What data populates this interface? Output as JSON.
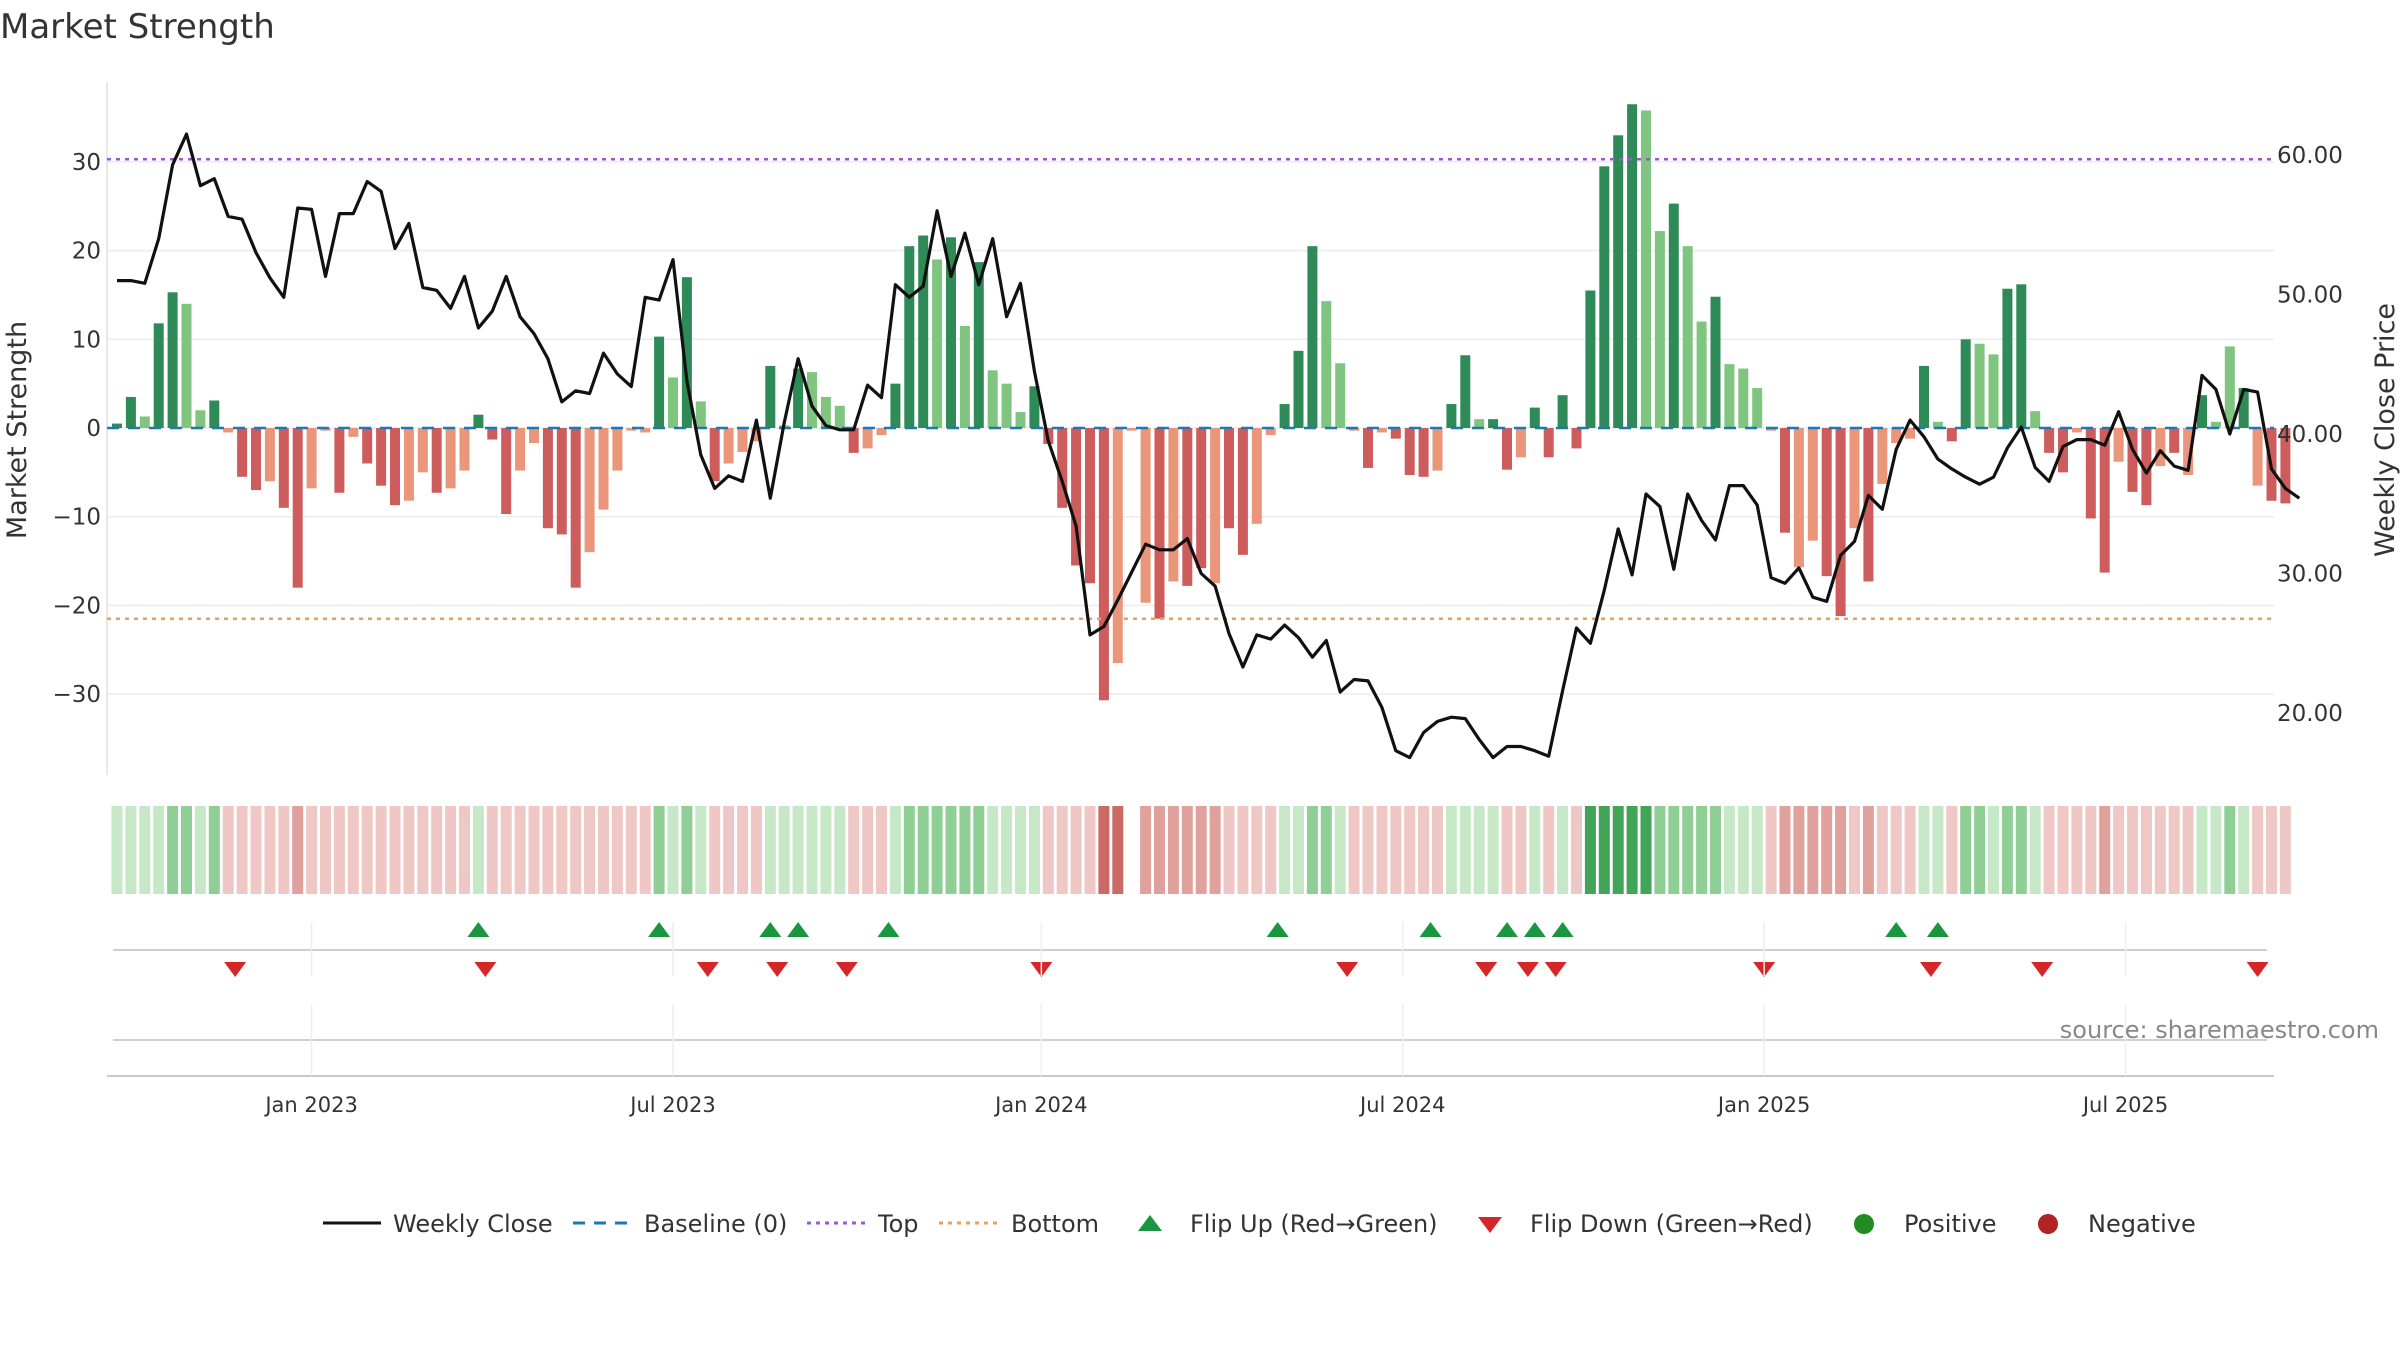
{
  "colors": {
    "dark_green": "#2e8b57",
    "light_green": "#7fc47f",
    "dark_red": "#cd5c5c",
    "light_red": "#e9967a",
    "close_line": "#111111",
    "baseline": "#1f77b4",
    "top": "#9b59d0",
    "bottom": "#e8a15a",
    "flip_up": "#1a9641",
    "flip_down": "#d62728",
    "positive": "#228b22",
    "negative": "#b22222"
  },
  "chart_data": {
    "type": "bar",
    "title": "Market Strength",
    "ylabel": "Market Strength",
    "y2label": "Weekly Close Price",
    "ylim": [
      -39,
      39
    ],
    "y2lim": [
      15.0,
      65.0
    ],
    "y_ticks": [
      30,
      20,
      10,
      0,
      -10,
      -20,
      -30
    ],
    "y_tick_labels": [
      "30",
      "20",
      "10",
      "0",
      "−10",
      "−20",
      "−30"
    ],
    "y2_ticks": [
      60,
      50,
      40,
      30,
      20
    ],
    "y2_tick_labels": [
      "60.00",
      "50.00",
      "40.00",
      "30.00",
      "20.00"
    ],
    "x_tick_labels": [
      "Jan 2023",
      "Jul 2023",
      "Jan 2024",
      "Jul 2024",
      "Jan 2025",
      "Jul 2025"
    ],
    "x_tick_weeks": [
      14,
      40,
      66.5,
      92.5,
      118.5,
      144.5
    ],
    "top_line": 30.3,
    "bottom_line": -21.5,
    "strength": [
      0.5,
      3.5,
      1.3,
      11.8,
      15.3,
      14,
      2,
      3.1,
      -0.5,
      -5.5,
      -7,
      -6,
      -9,
      -18,
      -6.8,
      -0.3,
      -7.3,
      -1,
      -4,
      -6.5,
      -8.7,
      -8.2,
      -5,
      -7.3,
      -6.8,
      -4.8,
      1.5,
      -1.3,
      -9.7,
      -4.8,
      -1.7,
      -11.3,
      -12,
      -18,
      -14,
      -9.2,
      -4.8,
      -0.3,
      -0.5,
      10.3,
      5.7,
      17,
      3,
      -6,
      -4,
      -2.7,
      -1.5,
      7,
      0.3,
      6.7,
      6.3,
      3.5,
      2.5,
      -2.8,
      -2.3,
      -0.8,
      5,
      20.5,
      21.7,
      19,
      21.5,
      11.5,
      18.7,
      6.5,
      5,
      1.8,
      4.7,
      -1.8,
      -9,
      -15.5,
      -17.5,
      -30.7,
      -26.5,
      -0.3,
      -19.7,
      -21.5,
      -17.3,
      -17.8,
      -15.8,
      -17.5,
      -11.3,
      -14.3,
      -10.8,
      -0.8,
      2.7,
      8.7,
      20.5,
      14.3,
      7.3,
      -0.3,
      -4.5,
      -0.5,
      -1.2,
      -5.3,
      -5.5,
      -4.8,
      2.7,
      8.2,
      1,
      1,
      -4.7,
      -3.3,
      2.3,
      -3.3,
      3.7,
      -2.3,
      15.5,
      29.5,
      33,
      36.5,
      35.8,
      22.2,
      25.3,
      20.5,
      12,
      14.8,
      7.2,
      6.7,
      4.5,
      -0.3,
      -11.8,
      -15.7,
      -12.7,
      -16.7,
      -21.2,
      -11.3,
      -17.3,
      -6.3,
      -1.7,
      -1.2,
      7,
      0.7,
      -1.5,
      10,
      9.5,
      8.3,
      15.7,
      16.2,
      1.9,
      -2.8,
      -5,
      -0.5,
      -10.2,
      -16.3,
      -3.8,
      -7.2,
      -8.7,
      -4.3,
      -2.8,
      -5.3,
      3.7,
      0.7,
      9.2,
      4.5,
      -6.5,
      -8.2,
      -8.5
    ],
    "bar_shade": [
      "D",
      "D",
      "L",
      "D",
      "D",
      "L",
      "L",
      "D",
      "L",
      "D",
      "D",
      "L",
      "D",
      "D",
      "L",
      "L",
      "D",
      "L",
      "D",
      "D",
      "D",
      "L",
      "L",
      "D",
      "L",
      "L",
      "D",
      "D",
      "D",
      "L",
      "L",
      "D",
      "D",
      "D",
      "L",
      "L",
      "L",
      "L",
      "L",
      "D",
      "L",
      "D",
      "L",
      "D",
      "L",
      "L",
      "L",
      "D",
      "L",
      "D",
      "L",
      "L",
      "L",
      "D",
      "L",
      "L",
      "D",
      "D",
      "D",
      "L",
      "D",
      "L",
      "D",
      "L",
      "L",
      "L",
      "D",
      "D",
      "D",
      "D",
      "D",
      "D",
      "L",
      "L",
      "L",
      "D",
      "L",
      "D",
      "D",
      "L",
      "D",
      "D",
      "L",
      "L",
      "D",
      "D",
      "D",
      "L",
      "L",
      "L",
      "D",
      "L",
      "D",
      "D",
      "D",
      "L",
      "D",
      "D",
      "L",
      "D",
      "D",
      "L",
      "D",
      "D",
      "D",
      "D",
      "D",
      "D",
      "D",
      "D",
      "L",
      "L",
      "D",
      "L",
      "L",
      "D",
      "L",
      "L",
      "L",
      "L",
      "D",
      "L",
      "L",
      "D",
      "D",
      "L",
      "D",
      "L",
      "L",
      "L",
      "D",
      "L",
      "D",
      "D",
      "L",
      "L",
      "D",
      "D",
      "L",
      "D",
      "D",
      "L",
      "D",
      "D",
      "L",
      "D",
      "D",
      "L",
      "D",
      "L",
      "D",
      "L",
      "L",
      "D",
      "L",
      "D",
      "D",
      "D",
      "D",
      "D"
    ],
    "close": [
      51,
      51,
      50.8,
      54,
      59.3,
      61.5,
      57.8,
      58.3,
      55.6,
      55.4,
      53,
      51.2,
      49.8,
      56.2,
      56.1,
      51.3,
      55.8,
      55.8,
      58.1,
      57.4,
      53.3,
      55.1,
      50.5,
      50.3,
      49,
      51.3,
      47.6,
      48.8,
      51.3,
      48.4,
      47.2,
      45.4,
      42.3,
      43.1,
      42.9,
      45.8,
      44.3,
      43.4,
      49.8,
      49.6,
      52.5,
      43.8,
      38.5,
      36.1,
      37,
      36.6,
      41,
      35.4,
      40.8,
      45.4,
      42,
      40.6,
      40.3,
      40.3,
      43.5,
      42.6,
      50.7,
      49.8,
      50.6,
      56,
      51.3,
      54.4,
      50.7,
      54,
      48.4,
      50.8,
      44.5,
      39.5,
      36.6,
      33.4,
      25.6,
      26.2,
      28.1,
      30.1,
      32.1,
      31.7,
      31.7,
      32.5,
      30,
      29.1,
      25.7,
      23.3,
      25.6,
      25.3,
      26.3,
      25.4,
      24,
      25.2,
      21.5,
      22.4,
      22.3,
      20.4,
      17.3,
      16.8,
      18.6,
      19.4,
      19.7,
      19.6,
      18.1,
      16.8,
      17.6,
      17.6,
      17.3,
      16.9,
      21.6,
      26.1,
      25,
      28.8,
      33.2,
      29.9,
      35.7,
      34.8,
      30.3,
      35.7,
      33.8,
      32.4,
      36.3,
      36.3,
      34.9,
      29.7,
      29.3,
      30.4,
      28.3,
      28,
      31.3,
      32.3,
      35.6,
      34.6,
      38.9,
      41,
      39.8,
      38.2,
      37.5,
      36.9,
      36.4,
      36.9,
      39,
      40.5,
      37.6,
      36.6,
      39.1,
      39.6,
      39.6,
      39.2,
      41.6,
      38.9,
      37.2,
      38.8,
      37.7,
      37.4,
      44.2,
      43.2,
      40,
      43.2,
      43,
      37.5,
      36.1,
      35.4
    ],
    "heat_band": [
      1,
      1,
      1,
      1,
      2,
      2,
      1,
      2,
      -1,
      -1,
      -1,
      -1,
      -1,
      -2,
      -1,
      -1,
      -1,
      -1,
      -1,
      -1,
      -1,
      -1,
      -1,
      -1,
      -1,
      -1,
      1,
      -1,
      -1,
      -1,
      -1,
      -1,
      -1,
      -1,
      -1,
      -1,
      -1,
      -1,
      -1,
      2,
      1,
      2,
      1,
      -1,
      -1,
      -1,
      -1,
      1,
      1,
      1,
      1,
      1,
      1,
      -1,
      -1,
      -1,
      1,
      2,
      2,
      2,
      2,
      2,
      2,
      1,
      1,
      1,
      1,
      -1,
      -1,
      -1,
      -1,
      -3,
      -3,
      null,
      -2,
      -2,
      -2,
      -2,
      -2,
      -2,
      -1,
      -1,
      -1,
      -1,
      1,
      1,
      2,
      2,
      1,
      -1,
      -1,
      -1,
      -1,
      -1,
      -1,
      -1,
      1,
      1,
      1,
      1,
      -1,
      -1,
      1,
      -1,
      1,
      -1,
      3,
      3,
      3,
      3,
      3,
      2,
      2,
      2,
      2,
      2,
      1,
      1,
      1,
      -1,
      -2,
      -2,
      -2,
      -2,
      -2,
      -1,
      -2,
      -1,
      -1,
      -1,
      1,
      1,
      -1,
      2,
      2,
      1,
      2,
      2,
      1,
      -1,
      -1,
      -1,
      -1,
      -2,
      -1,
      -1,
      -1,
      -1,
      -1,
      -1,
      1,
      1,
      2,
      1,
      -1,
      -1,
      -1
    ],
    "flip_up_weeks": [
      26,
      39,
      47,
      49,
      55.5,
      83.5,
      94.5,
      100,
      102,
      104,
      128,
      131
    ],
    "flip_down_weeks": [
      8.5,
      26.5,
      42.5,
      47.5,
      52.5,
      66.5,
      88.5,
      98.5,
      101.5,
      103.5,
      118.5,
      130.5,
      138.5,
      154
    ]
  },
  "legend": {
    "weekly_close": "Weekly Close",
    "baseline": "Baseline (0)",
    "top": "Top",
    "bottom": "Bottom",
    "flip_up": "Flip Up (Red→Green)",
    "flip_down": "Flip Down (Green→Red)",
    "positive": "Positive",
    "negative": "Negative"
  },
  "source_text": "source: sharemaestro.com"
}
